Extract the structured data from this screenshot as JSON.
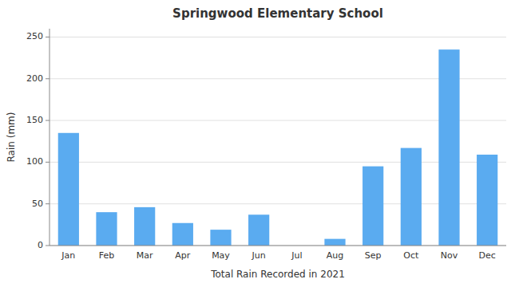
{
  "chart_data": {
    "type": "bar",
    "title": "Springwood Elementary School",
    "xlabel": "Total Rain Recorded in 2021",
    "ylabel": "Rain (mm)",
    "categories": [
      "Jan",
      "Feb",
      "Mar",
      "Apr",
      "May",
      "Jun",
      "Jul",
      "Aug",
      "Sep",
      "Oct",
      "Nov",
      "Dec"
    ],
    "values": [
      135,
      40,
      46,
      27,
      19,
      37,
      0,
      8,
      95,
      117,
      235,
      109
    ],
    "color": "#5aabf0",
    "ylim": [
      0,
      260
    ],
    "yticks": [
      0,
      50,
      100,
      150,
      200,
      250
    ],
    "grid": true
  }
}
